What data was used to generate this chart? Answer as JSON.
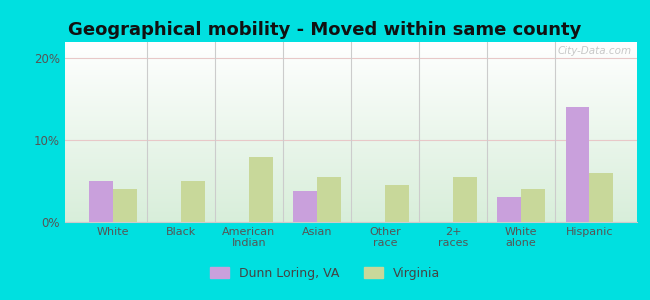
{
  "title": "Geographical mobility - Moved within same county",
  "categories": [
    "White",
    "Black",
    "American\nIndian",
    "Asian",
    "Other\nrace",
    "2+\nraces",
    "White\nalone",
    "Hispanic"
  ],
  "dunn_loring": [
    5.0,
    0,
    0,
    3.8,
    0,
    0,
    3.0,
    14.0
  ],
  "virginia": [
    4.0,
    5.0,
    8.0,
    5.5,
    4.5,
    5.5,
    4.0,
    6.0
  ],
  "dunn_loring_color": "#c9a0dc",
  "virginia_color": "#c8d89a",
  "outer_bg": "#00e0e0",
  "ylim": [
    0,
    22
  ],
  "yticks": [
    0,
    10,
    20
  ],
  "ytick_labels": [
    "0%",
    "10%",
    "20%"
  ],
  "legend_label_1": "Dunn Loring, VA",
  "legend_label_2": "Virginia",
  "bar_width": 0.35,
  "title_fontsize": 13,
  "watermark": "City-Data.com"
}
